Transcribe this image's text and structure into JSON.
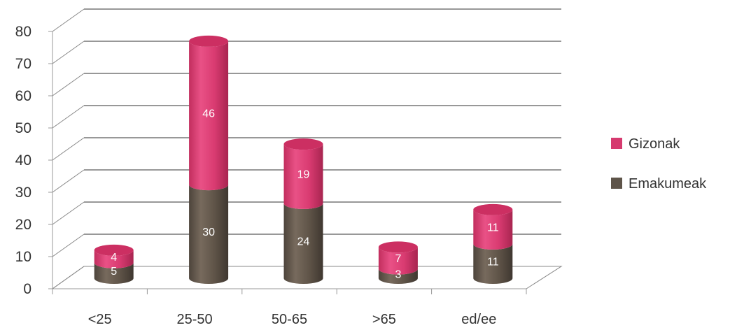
{
  "chart_data": {
    "type": "bar",
    "stacked": true,
    "style": "3d-cylinder",
    "title": "",
    "xlabel": "",
    "ylabel": "",
    "categories": [
      "<25",
      "25-50",
      "50-65",
      ">65",
      "ed/ee"
    ],
    "series": [
      {
        "name": "Emakumeak",
        "values": [
          5,
          30,
          24,
          3,
          11
        ],
        "color": "#5e5449"
      },
      {
        "name": "Gizonak",
        "values": [
          4,
          46,
          19,
          7,
          11
        ],
        "color": "#d63a6f"
      }
    ],
    "ylim": [
      0,
      80
    ],
    "yticks": [
      0,
      10,
      20,
      30,
      40,
      50,
      60,
      70,
      80
    ],
    "grid": true,
    "legend": "right",
    "legend_order": [
      "Gizonak",
      "Emakumeak"
    ]
  }
}
